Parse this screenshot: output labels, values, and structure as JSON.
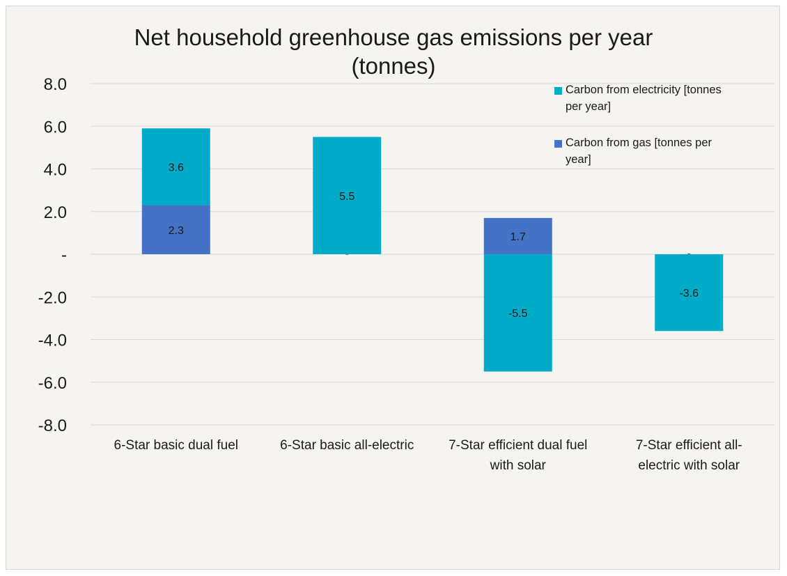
{
  "chart_data": {
    "type": "bar",
    "stacked": true,
    "title": "Net household greenhouse gas emissions per year (tonnes)",
    "title_lines": [
      "Net household greenhouse gas emissions per year",
      "(tonnes)"
    ],
    "categories": [
      [
        "6-Star basic dual fuel"
      ],
      [
        "6-Star basic all-electric"
      ],
      [
        "7-Star efficient dual fuel",
        "with solar"
      ],
      [
        "7-Star efficient all-",
        "electric with solar"
      ]
    ],
    "series": [
      {
        "name": "Carbon from gas [tonnes per year]",
        "legend_lines": [
          "Carbon from gas [tonnes per",
          "year]"
        ],
        "color": "#4472c4",
        "values": [
          2.3,
          0,
          1.7,
          0
        ],
        "labels": [
          "2.3",
          "-",
          "1.7",
          "-"
        ]
      },
      {
        "name": "Carbon from electricity [tonnes per year]",
        "legend_lines": [
          "Carbon from electricity [tonnes",
          "per year]"
        ],
        "color": "#00abc8",
        "values": [
          3.6,
          5.5,
          -5.5,
          -3.6
        ],
        "labels": [
          "3.6",
          "5.5",
          "-5.5",
          "-3.6"
        ]
      }
    ],
    "ylim": [
      -8,
      8
    ],
    "yticks": [
      8,
      6,
      4,
      2,
      0,
      -2,
      -4,
      -6,
      -8
    ],
    "ytick_labels": [
      "8.0",
      "6.0",
      "4.0",
      "2.0",
      "-",
      "-2.0",
      "-4.0",
      "-6.0",
      "-8.0"
    ],
    "grid": true,
    "legend_position": "top-right"
  },
  "colors": {
    "background": "#f5f4f0",
    "grid": "#d9d9d9",
    "text": "#1a1a1a"
  }
}
